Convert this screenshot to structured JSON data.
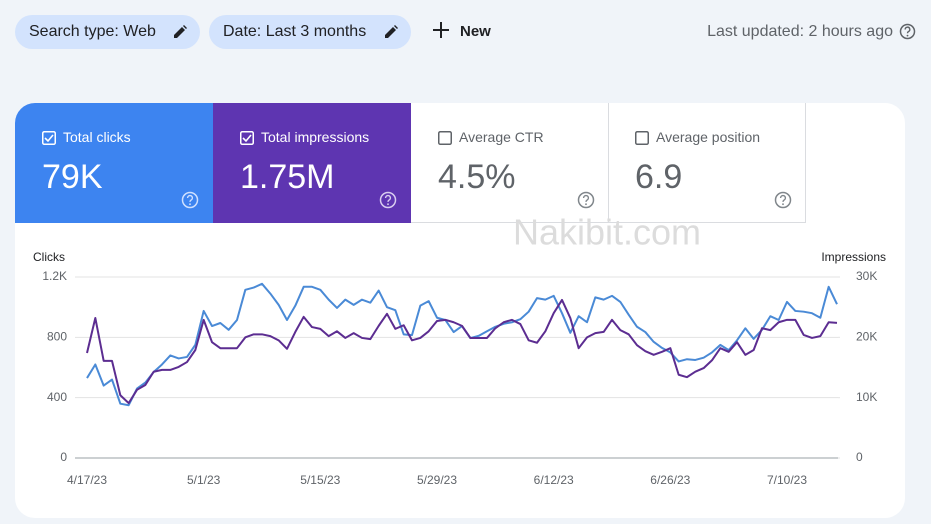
{
  "toolbar": {
    "search_type": "Search type: Web",
    "date": "Date: Last 3 months",
    "new": "New",
    "last_updated": "Last updated: 2 hours ago"
  },
  "watermark": "Nakibit.com",
  "other_metrics": [
    {
      "label": "Average CTR",
      "value": "4.5%"
    },
    {
      "label": "Average position",
      "value": "6.9"
    }
  ],
  "chart_data": {
    "type": "line",
    "y_label": "Clicks",
    "y2_label": "Impressions",
    "categories": [
      "4/17/23",
      null,
      null,
      null,
      null,
      null,
      null,
      null,
      null,
      null,
      null,
      null,
      null,
      null,
      "5/1/23",
      null,
      null,
      null,
      null,
      null,
      null,
      null,
      null,
      null,
      null,
      null,
      null,
      null,
      "5/15/23",
      null,
      null,
      null,
      null,
      null,
      null,
      null,
      null,
      null,
      null,
      null,
      null,
      null,
      "5/29/23",
      null,
      null,
      null,
      null,
      null,
      null,
      null,
      null,
      null,
      null,
      null,
      null,
      null,
      "6/12/23",
      null,
      null,
      null,
      null,
      null,
      null,
      null,
      null,
      null,
      null,
      null,
      null,
      null,
      "6/26/23",
      null,
      null,
      null,
      null,
      null,
      null,
      null,
      null,
      null,
      null,
      null,
      null,
      null,
      "7/10/23",
      null,
      null,
      null,
      null,
      null,
      null
    ],
    "series": [
      {
        "name": "Total clicks",
        "total": "79K",
        "color": "#4a8ad6",
        "axis": "y",
        "values": [
          530,
          620,
          480,
          520,
          360,
          350,
          460,
          500,
          570,
          620,
          680,
          660,
          670,
          750,
          975,
          875,
          895,
          850,
          915,
          1115,
          1130,
          1155,
          1090,
          1015,
          915,
          1010,
          1135,
          1135,
          1115,
          1050,
          995,
          1050,
          1015,
          1050,
          1030,
          1110,
          1000,
          980,
          820,
          815,
          1010,
          1040,
          930,
          915,
          835,
          875,
          795,
          810,
          840,
          870,
          890,
          900,
          920,
          970,
          1060,
          1050,
          1075,
          960,
          830,
          940,
          900,
          1065,
          1050,
          1075,
          1035,
          950,
          870,
          835,
          770,
          730,
          700,
          640,
          655,
          650,
          665,
          700,
          750,
          715,
          780,
          860,
          790,
          850,
          940,
          915,
          1035,
          975,
          970,
          960,
          930,
          1135,
          1020
        ]
      },
      {
        "name": "Total impressions",
        "total": "1.75M",
        "color": "#5c2d91",
        "axis": "y2",
        "values": [
          17400,
          23200,
          16100,
          16100,
          10400,
          9100,
          11300,
          12100,
          14300,
          14600,
          14600,
          15100,
          15900,
          17900,
          22900,
          19200,
          18200,
          18200,
          18200,
          20000,
          20500,
          20500,
          20200,
          19500,
          18100,
          20900,
          23400,
          21700,
          21400,
          20200,
          21000,
          19900,
          20700,
          19900,
          19700,
          21900,
          23900,
          21400,
          22000,
          19500,
          19900,
          21000,
          22700,
          22900,
          22500,
          21900,
          19900,
          19900,
          19900,
          21500,
          22500,
          22900,
          22200,
          19500,
          19100,
          21000,
          24000,
          26200,
          23200,
          18200,
          20000,
          20700,
          20900,
          22900,
          21200,
          20500,
          18700,
          17700,
          17100,
          17600,
          18200,
          13800,
          13400,
          14300,
          14900,
          16200,
          18200,
          17600,
          19200,
          17100,
          17900,
          21500,
          21200,
          22500,
          22900,
          22900,
          20400,
          19900,
          20200,
          22500,
          22400
        ]
      }
    ],
    "ylim": [
      0,
      1200
    ],
    "yticks": [
      0,
      400,
      800,
      {
        "value": 1200,
        "label": "1.2K"
      }
    ],
    "y2lim": [
      0,
      30000
    ],
    "y2ticks": [
      0,
      {
        "value": 10000,
        "label": "10K"
      },
      {
        "value": 20000,
        "label": "20K"
      },
      {
        "value": 30000,
        "label": "30K"
      }
    ],
    "grid": true
  }
}
